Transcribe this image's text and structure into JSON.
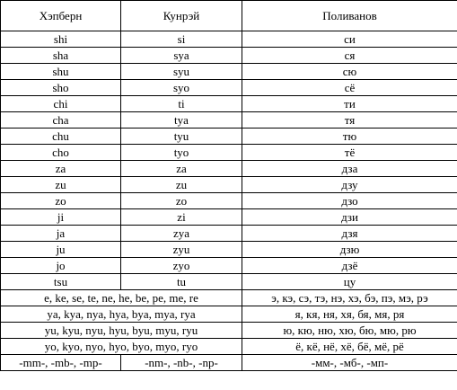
{
  "headers": [
    "Хэпберн",
    "Кунрэй",
    "Поливанов"
  ],
  "rows": [
    [
      "shi",
      "si",
      "си"
    ],
    [
      "sha",
      "sya",
      "ся"
    ],
    [
      "shu",
      "syu",
      "сю"
    ],
    [
      "sho",
      "syo",
      "сё"
    ],
    [
      "chi",
      "ti",
      "ти"
    ],
    [
      "cha",
      "tya",
      "тя"
    ],
    [
      "chu",
      "tyu",
      "тю"
    ],
    [
      "cho",
      "tyo",
      "тё"
    ],
    [
      "za",
      "za",
      "дза"
    ],
    [
      "zu",
      "zu",
      "дзу"
    ],
    [
      "zo",
      "zo",
      "дзо"
    ],
    [
      "ji",
      "zi",
      "дзи"
    ],
    [
      "ja",
      "zya",
      "дзя"
    ],
    [
      "ju",
      "zyu",
      "дзю"
    ],
    [
      "jo",
      "zyo",
      "дзё"
    ],
    [
      "tsu",
      "tu",
      "цу"
    ]
  ],
  "wide_rows": [
    [
      "e, ke, se, te, ne, he, be, pe, me, re",
      "э, кэ, сэ, тэ, нэ, хэ, бэ, пэ, мэ, рэ"
    ],
    [
      "ya, kya, nya, hya, bya, mya, rya",
      "я, кя, ня, хя, бя, мя, ря"
    ],
    [
      "yu, kyu, nyu, hyu, byu, myu, ryu",
      "ю, кю, ню, хю, бю, мю, рю"
    ],
    [
      "yo, kyo, nyo, hyo, byo, myo, ryo",
      "ё, кё, нё, хё, бё, мё, рё"
    ]
  ],
  "last_row": [
    "-mm-, -mb-, -mp-",
    "-nm-, -nb-, -np-",
    "-мм-, -мб-, -мп-"
  ]
}
